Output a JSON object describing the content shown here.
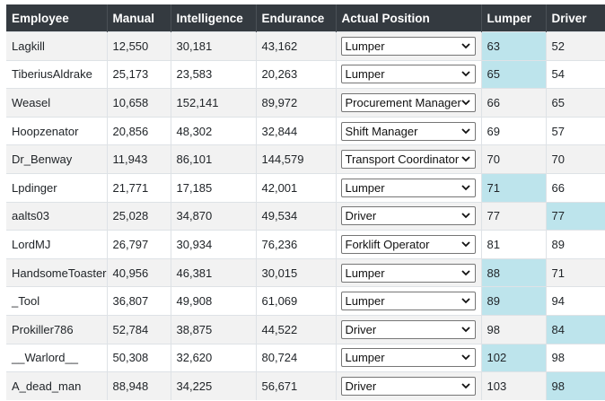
{
  "headers": {
    "employee": "Employee",
    "manual": "Manual",
    "intelligence": "Intelligence",
    "endurance": "Endurance",
    "position": "Actual Position",
    "lumper": "Lumper",
    "driver": "Driver"
  },
  "highlight_color": "#bde4ec",
  "rows": [
    {
      "employee": "Lagkill",
      "manual": "12,550",
      "intelligence": "30,181",
      "endurance": "43,162",
      "position": "Lumper",
      "lumper": "63",
      "driver": "52",
      "lumper_hl": true,
      "driver_hl": false
    },
    {
      "employee": "TiberiusAldrake",
      "manual": "25,173",
      "intelligence": "23,583",
      "endurance": "20,263",
      "position": "Lumper",
      "lumper": "65",
      "driver": "54",
      "lumper_hl": true,
      "driver_hl": false
    },
    {
      "employee": "Weasel",
      "manual": "10,658",
      "intelligence": "152,141",
      "endurance": "89,972",
      "position": "Procurement Manager",
      "lumper": "66",
      "driver": "65",
      "lumper_hl": false,
      "driver_hl": false
    },
    {
      "employee": "Hoopzenator",
      "manual": "20,856",
      "intelligence": "48,302",
      "endurance": "32,844",
      "position": "Shift Manager",
      "lumper": "69",
      "driver": "57",
      "lumper_hl": false,
      "driver_hl": false
    },
    {
      "employee": "Dr_Benway",
      "manual": "11,943",
      "intelligence": "86,101",
      "endurance": "144,579",
      "position": "Transport Coordinator",
      "lumper": "70",
      "driver": "70",
      "lumper_hl": false,
      "driver_hl": false
    },
    {
      "employee": "Lpdinger",
      "manual": "21,771",
      "intelligence": "17,185",
      "endurance": "42,001",
      "position": "Lumper",
      "lumper": "71",
      "driver": "66",
      "lumper_hl": true,
      "driver_hl": false
    },
    {
      "employee": "aalts03",
      "manual": "25,028",
      "intelligence": "34,870",
      "endurance": "49,534",
      "position": "Driver",
      "lumper": "77",
      "driver": "77",
      "lumper_hl": false,
      "driver_hl": true
    },
    {
      "employee": "LordMJ",
      "manual": "26,797",
      "intelligence": "30,934",
      "endurance": "76,236",
      "position": "Forklift Operator",
      "lumper": "81",
      "driver": "89",
      "lumper_hl": false,
      "driver_hl": false
    },
    {
      "employee": "HandsomeToaster",
      "manual": "40,956",
      "intelligence": "46,381",
      "endurance": "30,015",
      "position": "Lumper",
      "lumper": "88",
      "driver": "71",
      "lumper_hl": true,
      "driver_hl": false
    },
    {
      "employee": "_Tool",
      "manual": "36,807",
      "intelligence": "49,908",
      "endurance": "61,069",
      "position": "Lumper",
      "lumper": "89",
      "driver": "94",
      "lumper_hl": true,
      "driver_hl": false
    },
    {
      "employee": "Prokiller786",
      "manual": "52,784",
      "intelligence": "38,875",
      "endurance": "44,522",
      "position": "Driver",
      "lumper": "98",
      "driver": "84",
      "lumper_hl": false,
      "driver_hl": true
    },
    {
      "employee": "__Warlord__",
      "manual": "50,308",
      "intelligence": "32,620",
      "endurance": "80,724",
      "position": "Lumper",
      "lumper": "102",
      "driver": "98",
      "lumper_hl": true,
      "driver_hl": false
    },
    {
      "employee": "A_dead_man",
      "manual": "88,948",
      "intelligence": "34,225",
      "endurance": "56,671",
      "position": "Driver",
      "lumper": "103",
      "driver": "98",
      "lumper_hl": false,
      "driver_hl": true
    }
  ]
}
